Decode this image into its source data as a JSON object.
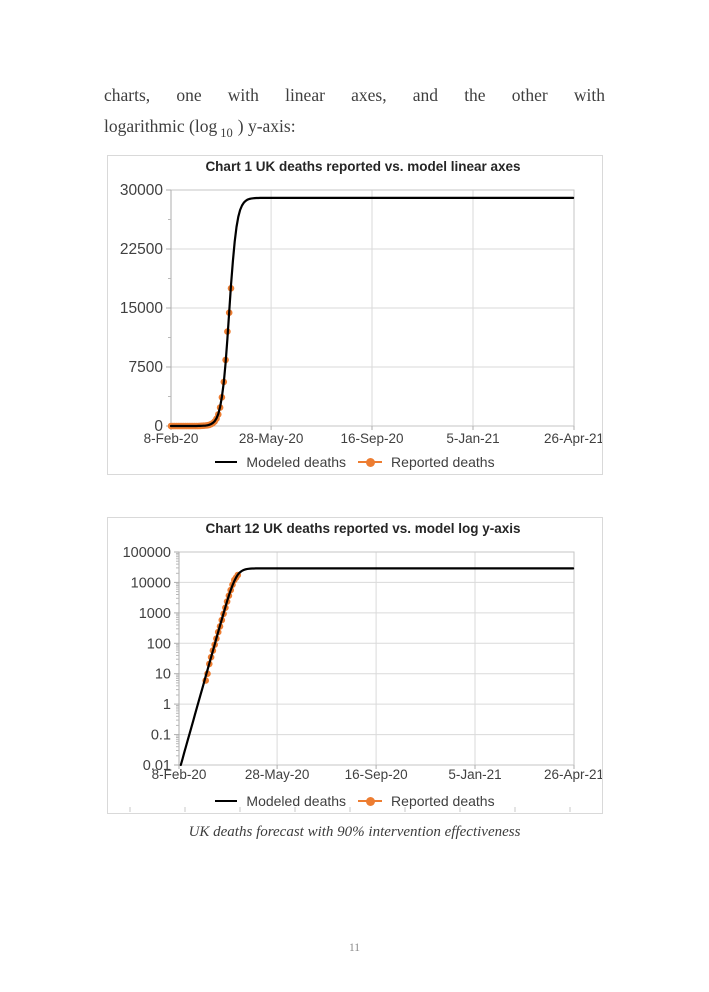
{
  "page": {
    "number": "11"
  },
  "intro": {
    "line1": "charts, one with linear axes, and the other with",
    "line2_pre": "logarithmic (log",
    "line2_sub": "10",
    "line2_post": ") y-axis:"
  },
  "caption": "UK deaths forecast with 90% intervention effectiveness",
  "chart_data": [
    {
      "type": "line",
      "title": "Chart 1 UK deaths reported vs. model linear axes",
      "xlabel": "",
      "ylabel": "",
      "y_scale": "linear",
      "ylim": [
        0,
        30000
      ],
      "y_ticks": [
        0,
        7500,
        15000,
        22500,
        30000
      ],
      "y_tick_labels": [
        "0",
        "7500",
        "15000",
        "22500",
        "30000"
      ],
      "y_minor_ticks": [
        3750,
        11250,
        18750,
        26250
      ],
      "x_days": [
        0,
        443
      ],
      "x_ticks": [
        0,
        110,
        221,
        332,
        443
      ],
      "x_tick_labels": [
        "8-Feb-20",
        "28-May-20",
        "16-Sep-20",
        "5-Jan-21",
        "26-Apr-21"
      ],
      "grid": true,
      "legend_position": "bottom",
      "series": [
        {
          "name": "Modeled deaths",
          "kind": "line",
          "color": "#000000",
          "model": {
            "logistic": true,
            "K": 29000,
            "r": 0.24,
            "tm": 64,
            "t_step": 2
          }
        },
        {
          "name": "Reported deaths",
          "kind": "marker",
          "color": "#ED7D31",
          "days": [
            0,
            2,
            4,
            6,
            8,
            10,
            12,
            14,
            16,
            18,
            20,
            22,
            24,
            26,
            28,
            30,
            32,
            34,
            36,
            38,
            40,
            42,
            44,
            46,
            48,
            50,
            52,
            54,
            56,
            58,
            60,
            62,
            64,
            66
          ],
          "values": [
            0,
            0,
            0,
            0,
            0,
            0,
            0,
            0,
            0,
            0,
            0,
            0,
            0,
            0,
            0,
            6,
            10,
            21,
            35,
            58,
            90,
            144,
            233,
            360,
            580,
            930,
            1480,
            2350,
            3650,
            5600,
            8400,
            12000,
            14400,
            17500
          ]
        }
      ]
    },
    {
      "type": "line",
      "title": "Chart 12 UK deaths reported vs. model log y-axis",
      "xlabel": "",
      "ylabel": "",
      "y_scale": "log",
      "ylim": [
        0.01,
        100000
      ],
      "y_ticks": [
        0.01,
        0.1,
        1,
        10,
        100,
        1000,
        10000,
        100000
      ],
      "y_tick_labels": [
        "0.01",
        "0.1",
        "1",
        "10",
        "100",
        "1000",
        "10000",
        "100000"
      ],
      "x_days": [
        0,
        443
      ],
      "x_ticks": [
        0,
        110,
        221,
        332,
        443
      ],
      "x_tick_labels": [
        "8-Feb-20",
        "28-May-20",
        "16-Sep-20",
        "5-Jan-21",
        "26-Apr-21"
      ],
      "grid": true,
      "legend_position": "bottom",
      "series_from": 0
    }
  ]
}
